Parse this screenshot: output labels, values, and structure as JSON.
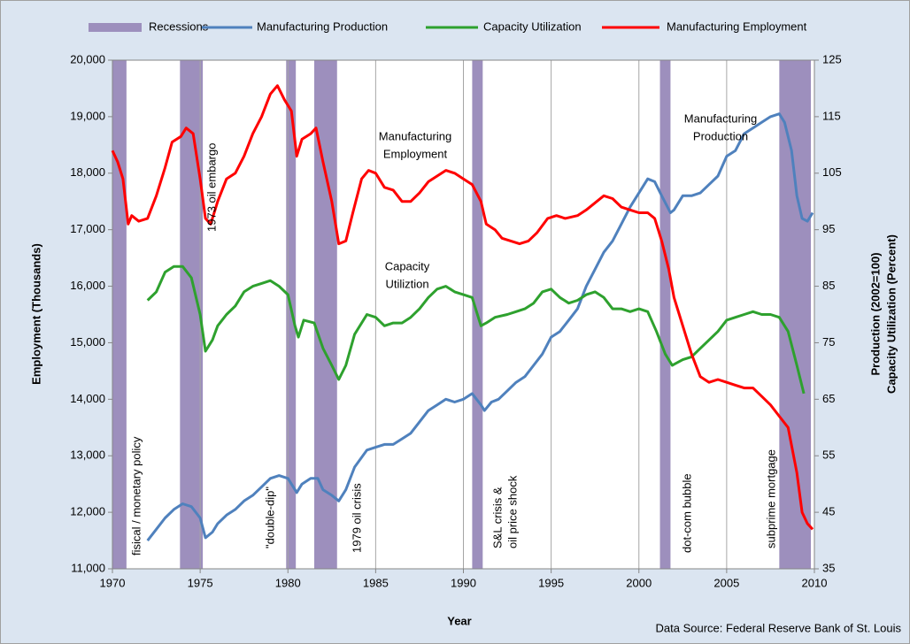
{
  "chart_data": {
    "type": "line",
    "x_label": "Year",
    "y_label": "Employment (Thousands)",
    "y2_label": [
      "Production (2002=100)",
      "Capacity Utilization (Percent)"
    ],
    "source": "Data Source: Federal Reserve Bank of St. Louis",
    "legend": "top",
    "grid": true,
    "xlim": [
      1970,
      2010
    ],
    "xticks": [
      1970,
      1975,
      1980,
      1985,
      1990,
      1995,
      2000,
      2005,
      2010
    ],
    "ylim": [
      11000,
      20000
    ],
    "yticks": [
      {
        "value": 11000,
        "label": "11,000"
      },
      {
        "value": 12000,
        "label": "12,000"
      },
      {
        "value": 13000,
        "label": "13,000"
      },
      {
        "value": 14000,
        "label": "14,000"
      },
      {
        "value": 15000,
        "label": "15,000"
      },
      {
        "value": 16000,
        "label": "16,000"
      },
      {
        "value": 17000,
        "label": "17,000"
      },
      {
        "value": 18000,
        "label": "18,000"
      },
      {
        "value": 19000,
        "label": "19,000"
      },
      {
        "value": 20000,
        "label": "20,000"
      }
    ],
    "y2lim": [
      35,
      125
    ],
    "y2ticks": [
      35,
      45,
      55,
      65,
      75,
      85,
      95,
      105,
      115,
      125
    ],
    "recessions": {
      "name": "Recessions",
      "color": "#9d8fbd",
      "spans": [
        [
          1970.0,
          1970.8
        ],
        [
          1973.85,
          1975.15
        ],
        [
          1979.9,
          1980.45
        ],
        [
          1981.5,
          1982.8
        ],
        [
          1990.5,
          1991.1
        ],
        [
          2001.2,
          2001.8
        ],
        [
          2008.0,
          2009.8
        ]
      ]
    },
    "series": [
      {
        "name": "Manufacturing Production",
        "color": "#4f81bd",
        "axis": "y2",
        "x": [
          1972.0,
          1972.5,
          1973.0,
          1973.5,
          1974.0,
          1974.5,
          1975.0,
          1975.3,
          1975.7,
          1976.0,
          1976.5,
          1977.0,
          1977.5,
          1978.0,
          1978.5,
          1979.0,
          1979.5,
          1980.0,
          1980.5,
          1980.8,
          1981.3,
          1981.7,
          1982.0,
          1982.5,
          1982.9,
          1983.3,
          1983.8,
          1984.5,
          1985.0,
          1985.5,
          1986.0,
          1986.5,
          1987.0,
          1987.5,
          1988.0,
          1988.5,
          1989.0,
          1989.5,
          1990.0,
          1990.5,
          1991.0,
          1991.2,
          1991.6,
          1992.0,
          1992.5,
          1993.0,
          1993.5,
          1994.0,
          1994.5,
          1995.0,
          1995.5,
          1996.0,
          1996.5,
          1997.0,
          1997.5,
          1998.0,
          1998.5,
          1999.0,
          1999.5,
          2000.0,
          2000.5,
          2000.9,
          2001.3,
          2001.8,
          2002.0,
          2002.5,
          2003.0,
          2003.5,
          2004.0,
          2004.5,
          2005.0,
          2005.5,
          2006.0,
          2006.5,
          2007.0,
          2007.5,
          2008.0,
          2008.3,
          2008.7,
          2009.0,
          2009.3,
          2009.6,
          2009.9
        ],
        "values": [
          40,
          42,
          44,
          45.5,
          46.5,
          46,
          44,
          40.5,
          41.5,
          43,
          44.5,
          45.5,
          47,
          48,
          49.5,
          51,
          51.5,
          51,
          48.5,
          50,
          51,
          51,
          49,
          48,
          47,
          49,
          53,
          56,
          56.5,
          57,
          57,
          58,
          59,
          61,
          63,
          64,
          65,
          64.5,
          65,
          66,
          64,
          63,
          64.5,
          65,
          66.5,
          68,
          69,
          71,
          73,
          76,
          77,
          79,
          81,
          85,
          88,
          91,
          93,
          96,
          99,
          101.5,
          104,
          103.5,
          101,
          98,
          98.5,
          101,
          101,
          101.5,
          103,
          104.5,
          108,
          109,
          112,
          113,
          114,
          115,
          115.5,
          114,
          109,
          101,
          97,
          96.5,
          98
        ]
      },
      {
        "name": "Capacity Utilization",
        "color": "#2ea12e",
        "axis": "y2",
        "x": [
          1972.0,
          1972.5,
          1973.0,
          1973.5,
          1974.0,
          1974.5,
          1975.0,
          1975.3,
          1975.7,
          1976.0,
          1976.5,
          1977.0,
          1977.5,
          1978.0,
          1978.5,
          1979.0,
          1979.5,
          1980.0,
          1980.4,
          1980.6,
          1980.9,
          1981.5,
          1982.0,
          1982.5,
          1982.9,
          1983.3,
          1983.8,
          1984.5,
          1985.0,
          1985.5,
          1986.0,
          1986.5,
          1987.0,
          1987.5,
          1988.0,
          1988.5,
          1989.0,
          1989.5,
          1990.0,
          1990.5,
          1991.0,
          1991.3,
          1991.8,
          1992.5,
          1993.0,
          1993.5,
          1994.0,
          1994.5,
          1995.0,
          1995.5,
          1996.0,
          1996.5,
          1997.0,
          1997.5,
          1998.0,
          1998.5,
          1999.0,
          1999.5,
          2000.0,
          2000.5,
          2001.0,
          2001.5,
          2001.9,
          2002.5,
          2003.0,
          2003.5,
          2004.0,
          2004.5,
          2005.0,
          2005.5,
          2006.0,
          2006.5,
          2007.0,
          2007.5,
          2008.0,
          2008.5,
          2009.0,
          2009.4
        ],
        "values": [
          82.5,
          84,
          87.5,
          88.5,
          88.5,
          86.5,
          80,
          73.5,
          75.5,
          78,
          80,
          81.5,
          84,
          85,
          85.5,
          86,
          85,
          83.5,
          78,
          76,
          79,
          78.5,
          74,
          71,
          68.5,
          71,
          76.5,
          80,
          79.5,
          78,
          78.5,
          78.5,
          79.5,
          81,
          83,
          84.5,
          85,
          84,
          83.5,
          83,
          78,
          78.5,
          79.5,
          80,
          80.5,
          81,
          82,
          84,
          84.5,
          83,
          82,
          82.5,
          83.5,
          84,
          83,
          81,
          81,
          80.5,
          81,
          80.5,
          77,
          73,
          71,
          72,
          72.5,
          74,
          75.5,
          77,
          79,
          79.5,
          80,
          80.5,
          80,
          80,
          79.5,
          77,
          71,
          66
        ]
      },
      {
        "name": "Manufacturing Employment",
        "color": "#ff0000",
        "axis": "y",
        "x": [
          1970.0,
          1970.3,
          1970.6,
          1970.9,
          1971.1,
          1971.5,
          1972.0,
          1972.5,
          1973.0,
          1973.4,
          1973.9,
          1974.2,
          1974.6,
          1975.0,
          1975.3,
          1975.6,
          1976.0,
          1976.5,
          1977.0,
          1977.5,
          1978.0,
          1978.5,
          1979.0,
          1979.4,
          1979.8,
          1980.2,
          1980.5,
          1980.8,
          1981.3,
          1981.6,
          1982.0,
          1982.5,
          1982.9,
          1983.3,
          1983.7,
          1984.2,
          1984.6,
          1985.0,
          1985.5,
          1986.0,
          1986.5,
          1987.0,
          1987.5,
          1988.0,
          1988.5,
          1989.0,
          1989.5,
          1990.0,
          1990.5,
          1991.0,
          1991.3,
          1991.8,
          1992.2,
          1992.7,
          1993.2,
          1993.7,
          1994.2,
          1994.8,
          1995.3,
          1995.8,
          1996.5,
          1997.0,
          1997.6,
          1998.0,
          1998.5,
          1999.0,
          1999.5,
          2000.0,
          2000.5,
          2000.9,
          2001.3,
          2001.7,
          2002.0,
          2002.5,
          2003.0,
          2003.5,
          2004.0,
          2004.5,
          2005.0,
          2005.5,
          2006.0,
          2006.5,
          2007.0,
          2007.5,
          2008.0,
          2008.5,
          2009.0,
          2009.3,
          2009.6,
          2009.9
        ],
        "values": [
          18400,
          18200,
          17900,
          17100,
          17250,
          17150,
          17200,
          17600,
          18100,
          18550,
          18650,
          18800,
          18700,
          17900,
          17200,
          17100,
          17500,
          17900,
          18000,
          18300,
          18700,
          19000,
          19400,
          19550,
          19300,
          19100,
          18300,
          18600,
          18700,
          18800,
          18200,
          17500,
          16750,
          16800,
          17300,
          17900,
          18050,
          18000,
          17750,
          17700,
          17500,
          17500,
          17650,
          17850,
          17950,
          18050,
          18000,
          17900,
          17800,
          17500,
          17100,
          17000,
          16850,
          16800,
          16750,
          16800,
          16950,
          17200,
          17250,
          17200,
          17250,
          17350,
          17500,
          17600,
          17550,
          17400,
          17350,
          17300,
          17300,
          17200,
          16800,
          16300,
          15800,
          15300,
          14800,
          14400,
          14300,
          14350,
          14300,
          14250,
          14200,
          14200,
          14050,
          13900,
          13700,
          13500,
          12700,
          12000,
          11800,
          11700
        ]
      }
    ],
    "annotations": [
      {
        "text": [
          "Manufacturing",
          "Employment"
        ]
      },
      {
        "text": [
          "Capacity",
          "Utiliztion"
        ]
      },
      {
        "text": [
          "Manufacturing",
          "Production"
        ]
      },
      {
        "text": [
          "fisical / monetary policy"
        ]
      },
      {
        "text": [
          "1973 oil embargo"
        ]
      },
      {
        "text": [
          "\"double-dip\""
        ]
      },
      {
        "text": [
          "1979 oil crisis"
        ]
      },
      {
        "text": [
          "S&L crisis &",
          "oil price shock"
        ]
      },
      {
        "text": [
          "dot-com bubble"
        ]
      },
      {
        "text": [
          "subprime mortgage"
        ]
      }
    ]
  }
}
